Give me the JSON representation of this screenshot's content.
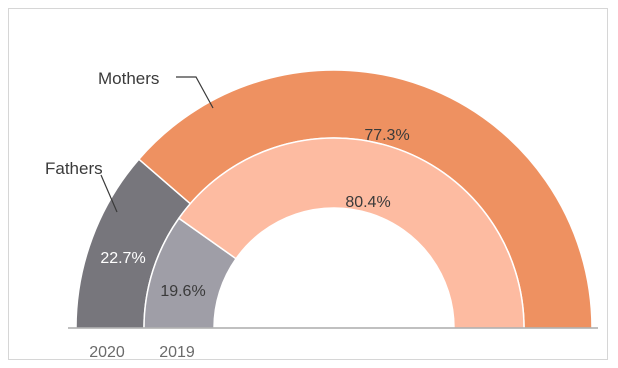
{
  "chart_data": {
    "type": "pie",
    "subtype": "semi-donut, concentric rings",
    "rings": [
      {
        "name": "2020",
        "position": "outer",
        "slices": [
          {
            "label": "Fathers",
            "value": 22.7,
            "display": "22.7%"
          },
          {
            "label": "Mothers",
            "value": 77.3,
            "display": "77.3%"
          }
        ]
      },
      {
        "name": "2019",
        "position": "inner",
        "slices": [
          {
            "label": "Fathers",
            "value": 19.6,
            "display": "19.6%"
          },
          {
            "label": "Mothers",
            "value": 80.4,
            "display": "80.4%"
          }
        ]
      }
    ],
    "legend_labels": {
      "fathers": "Fathers",
      "mothers": "Mothers"
    },
    "colors": {
      "fathers_2020": "#77767c",
      "mothers_2020": "#ee9161",
      "fathers_2019": "#9f9ea7",
      "mothers_2019": "#fdbba1",
      "baseline": "#9a9a9a",
      "text": "#3a3a3a"
    }
  }
}
